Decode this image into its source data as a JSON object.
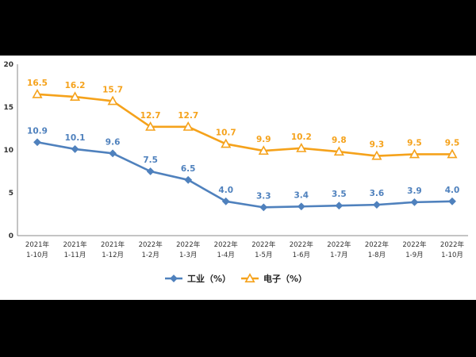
{
  "chart_data": {
    "type": "line",
    "categories": [
      [
        "2021年",
        "1-10月"
      ],
      [
        "2021年",
        "1-11月"
      ],
      [
        "2021年",
        "1-12月"
      ],
      [
        "2022年",
        "1-2月"
      ],
      [
        "2022年",
        "1-3月"
      ],
      [
        "2022年",
        "1-4月"
      ],
      [
        "2022年",
        "1-5月"
      ],
      [
        "2022年",
        "1-6月"
      ],
      [
        "2022年",
        "1-7月"
      ],
      [
        "2022年",
        "1-8月"
      ],
      [
        "2022年",
        "1-9月"
      ],
      [
        "2022年",
        "1-10月"
      ]
    ],
    "series": [
      {
        "name": "工业（%）",
        "color": "#4f81bd",
        "marker": "diamond",
        "values": [
          10.9,
          10.1,
          9.6,
          7.5,
          6.5,
          4.0,
          3.3,
          3.4,
          3.5,
          3.6,
          3.9,
          4.0
        ],
        "labels": [
          "10.9",
          "10.1",
          "9.6",
          "7.5",
          "6.5",
          "4.0",
          "3.3",
          "3.4",
          "3.5",
          "3.6",
          "3.9",
          "4.0"
        ]
      },
      {
        "name": "电子（%）",
        "color": "#f5a21b",
        "marker": "triangle",
        "values": [
          16.5,
          16.2,
          15.7,
          12.7,
          12.7,
          10.7,
          9.9,
          10.2,
          9.8,
          9.3,
          9.5,
          9.5
        ],
        "labels": [
          "16.5",
          "16.2",
          "15.7",
          "12.7",
          "12.7",
          "10.7",
          "9.9",
          "10.2",
          "9.8",
          "9.3",
          "9.5",
          "9.5"
        ]
      }
    ],
    "ylim": [
      0,
      20
    ],
    "yticks": [
      "0",
      "5",
      "10",
      "15",
      "20"
    ],
    "grid": false,
    "legend_position": "bottom-center"
  }
}
